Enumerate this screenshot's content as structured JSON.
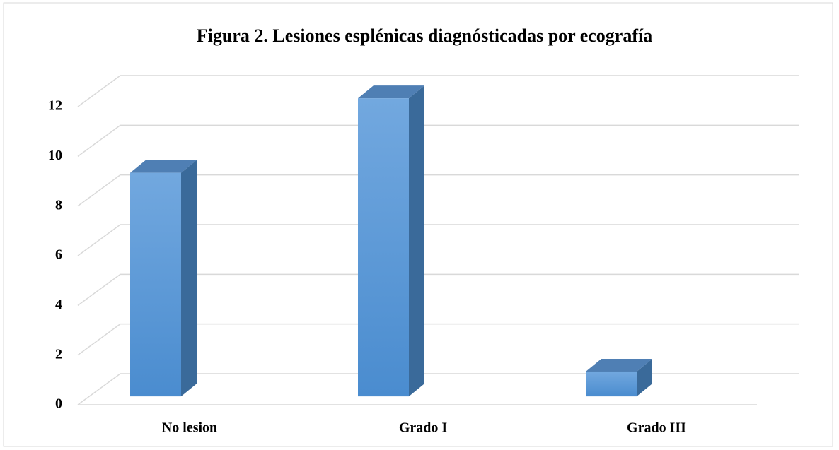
{
  "chart_data": {
    "type": "bar3d",
    "title": "Figura 2. Lesiones esplénicas diagnósticadas por ecografía",
    "categories": [
      "No lesion",
      "Grado I",
      "Grado III"
    ],
    "values": [
      9,
      12,
      1
    ],
    "color": "#5b9bd5",
    "ylim": [
      0,
      12
    ],
    "yticks": [
      0,
      2,
      4,
      6,
      8,
      10,
      12
    ],
    "grid": true
  }
}
